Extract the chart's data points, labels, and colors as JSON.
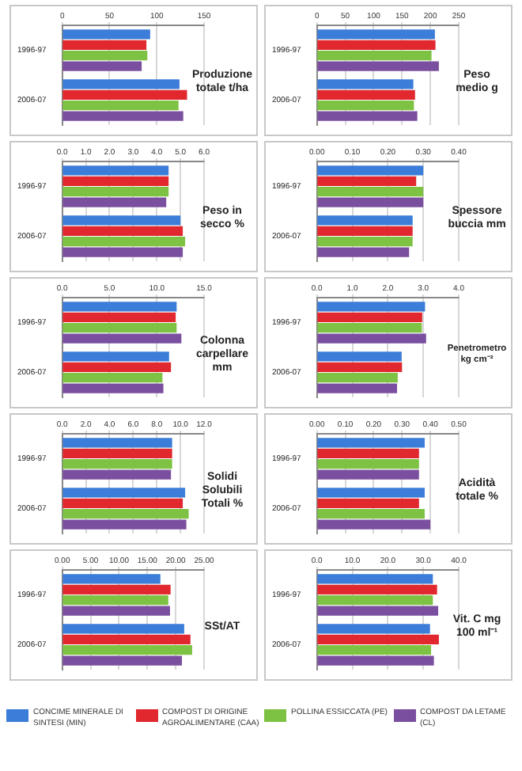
{
  "chart_data": [
    {
      "type": "bar",
      "orientation": "horizontal",
      "title": "Produzione totale t/ha",
      "categories": [
        "1996-97",
        "2006-07"
      ],
      "grid": "x",
      "legend": "bottom",
      "xlim": [
        0,
        150
      ],
      "xticks": [
        0,
        50,
        100,
        150
      ],
      "series": [
        {
          "name": "CONCIME MINERALE DI SINTESI (MIN)",
          "color": "#3b7dd8",
          "values": [
            93,
            124
          ]
        },
        {
          "name": "COMPOST DI ORIGINE AGROALIMENTARE (CAA)",
          "color": "#e0282e",
          "values": [
            89,
            132
          ]
        },
        {
          "name": "POLLINA ESSICCATA (PE)",
          "color": "#7dc242",
          "values": [
            90,
            123
          ]
        },
        {
          "name": "COMPOST DA LETAME (CL)",
          "color": "#7b4fa0",
          "values": [
            84,
            128
          ]
        }
      ]
    },
    {
      "type": "bar",
      "orientation": "horizontal",
      "title": "Peso medio g",
      "categories": [
        "1996-97",
        "2006-07"
      ],
      "grid": "x",
      "xlim": [
        0,
        250
      ],
      "xticks": [
        0,
        50,
        100,
        150,
        200,
        250
      ],
      "series": [
        {
          "color": "#3b7dd8",
          "values": [
            208,
            170
          ]
        },
        {
          "color": "#e0282e",
          "values": [
            209,
            173
          ]
        },
        {
          "color": "#7dc242",
          "values": [
            202,
            171
          ]
        },
        {
          "color": "#7b4fa0",
          "values": [
            215,
            177
          ]
        }
      ]
    },
    {
      "type": "bar",
      "orientation": "horizontal",
      "title": "Peso in secco %",
      "categories": [
        "1996-97",
        "2006-07"
      ],
      "grid": "x",
      "xlim": [
        0,
        6
      ],
      "xticks": [
        {
          "value": 0,
          "label": "0.0"
        },
        {
          "value": 1,
          "label": "1.0"
        },
        {
          "value": 2,
          "label": "2.0"
        },
        {
          "value": 3,
          "label": "3.0"
        },
        {
          "value": 4,
          "label": "4.0"
        },
        {
          "value": 5,
          "label": "5.0"
        },
        {
          "value": 6,
          "label": "6.0"
        }
      ],
      "series": [
        {
          "color": "#3b7dd8",
          "values": [
            4.5,
            5.0
          ]
        },
        {
          "color": "#e0282e",
          "values": [
            4.5,
            5.1
          ]
        },
        {
          "color": "#7dc242",
          "values": [
            4.5,
            5.2
          ]
        },
        {
          "color": "#7b4fa0",
          "values": [
            4.4,
            5.1
          ]
        }
      ]
    },
    {
      "type": "bar",
      "orientation": "horizontal",
      "title": "Spessore buccia mm",
      "categories": [
        "1996-97",
        "2006-07"
      ],
      "grid": "x",
      "xlim": [
        0,
        0.4
      ],
      "xticks": [
        {
          "value": 0,
          "label": "0.00"
        },
        {
          "value": 0.1,
          "label": "0.10"
        },
        {
          "value": 0.2,
          "label": "0.20"
        },
        {
          "value": 0.3,
          "label": "0.30"
        },
        {
          "value": 0.4,
          "label": "0.40"
        }
      ],
      "series": [
        {
          "color": "#3b7dd8",
          "values": [
            0.3,
            0.27
          ]
        },
        {
          "color": "#e0282e",
          "values": [
            0.28,
            0.27
          ]
        },
        {
          "color": "#7dc242",
          "values": [
            0.3,
            0.27
          ]
        },
        {
          "color": "#7b4fa0",
          "values": [
            0.3,
            0.26
          ]
        }
      ]
    },
    {
      "type": "bar",
      "orientation": "horizontal",
      "title": "Colonna carpellare mm",
      "categories": [
        "1996-97",
        "2006-07"
      ],
      "grid": "x",
      "xlim": [
        0,
        15
      ],
      "xticks": [
        {
          "value": 0,
          "label": "0.0"
        },
        {
          "value": 5,
          "label": "5.0"
        },
        {
          "value": 10,
          "label": "10.0"
        },
        {
          "value": 15,
          "label": "15.0"
        }
      ],
      "series": [
        {
          "color": "#3b7dd8",
          "values": [
            12.1,
            11.3
          ]
        },
        {
          "color": "#e0282e",
          "values": [
            12.0,
            11.5
          ]
        },
        {
          "color": "#7dc242",
          "values": [
            12.1,
            10.6
          ]
        },
        {
          "color": "#7b4fa0",
          "values": [
            12.6,
            10.7
          ]
        }
      ]
    },
    {
      "type": "bar",
      "orientation": "horizontal",
      "title": "Penetrometro kg cm⁻²",
      "categories": [
        "1996-97",
        "2006-07"
      ],
      "grid": "x",
      "xlim": [
        0,
        4
      ],
      "xticks": [
        {
          "value": 0,
          "label": "0.0"
        },
        {
          "value": 1,
          "label": "1.0"
        },
        {
          "value": 2,
          "label": "2.0"
        },
        {
          "value": 3,
          "label": "3.0"
        },
        {
          "value": 4,
          "label": "4.0"
        }
      ],
      "series": [
        {
          "color": "#3b7dd8",
          "values": [
            3.05,
            2.39
          ]
        },
        {
          "color": "#e0282e",
          "values": [
            2.97,
            2.4
          ]
        },
        {
          "color": "#7dc242",
          "values": [
            2.96,
            2.28
          ]
        },
        {
          "color": "#7b4fa0",
          "values": [
            3.08,
            2.26
          ]
        }
      ]
    },
    {
      "type": "bar",
      "orientation": "horizontal",
      "title": "Solidi Solubili Totali %",
      "categories": [
        "1996-97",
        "2006-07"
      ],
      "grid": "x",
      "xlim": [
        0,
        12
      ],
      "xticks": [
        {
          "value": 0,
          "label": "0.0"
        },
        {
          "value": 2,
          "label": "2.0"
        },
        {
          "value": 4,
          "label": "4.0"
        },
        {
          "value": 6,
          "label": "6.0"
        },
        {
          "value": 8,
          "label": "8.0"
        },
        {
          "value": 10,
          "label": "10.0"
        },
        {
          "value": 12,
          "label": "12.0"
        }
      ],
      "series": [
        {
          "color": "#3b7dd8",
          "values": [
            9.3,
            10.4
          ]
        },
        {
          "color": "#e0282e",
          "values": [
            9.3,
            10.2
          ]
        },
        {
          "color": "#7dc242",
          "values": [
            9.3,
            10.7
          ]
        },
        {
          "color": "#7b4fa0",
          "values": [
            9.2,
            10.5
          ]
        }
      ]
    },
    {
      "type": "bar",
      "orientation": "horizontal",
      "title": "Acidità totale %",
      "categories": [
        "1996-97",
        "2006-07"
      ],
      "grid": "x",
      "xlim": [
        0,
        0.5
      ],
      "xticks": [
        {
          "value": 0,
          "label": "0.00"
        },
        {
          "value": 0.1,
          "label": "0.10"
        },
        {
          "value": 0.2,
          "label": "0.20"
        },
        {
          "value": 0.3,
          "label": "0.30"
        },
        {
          "value": 0.4,
          "label": "0.40"
        },
        {
          "value": 0.5,
          "label": "0.50"
        }
      ],
      "series": [
        {
          "color": "#3b7dd8",
          "values": [
            0.38,
            0.38
          ]
        },
        {
          "color": "#e0282e",
          "values": [
            0.36,
            0.36
          ]
        },
        {
          "color": "#7dc242",
          "values": [
            0.36,
            0.38
          ]
        },
        {
          "color": "#7b4fa0",
          "values": [
            0.36,
            0.4
          ]
        }
      ]
    },
    {
      "type": "bar",
      "orientation": "horizontal",
      "title": "SSt/AT",
      "categories": [
        "1996-97",
        "2006-07"
      ],
      "grid": "x",
      "xlim": [
        0,
        25
      ],
      "xticks": [
        {
          "value": 0,
          "label": "0.00"
        },
        {
          "value": 5,
          "label": "5.00"
        },
        {
          "value": 10,
          "label": "10.00"
        },
        {
          "value": 15,
          "label": "15.00"
        },
        {
          "value": 20,
          "label": "20.00"
        },
        {
          "value": 25,
          "label": "25.00"
        }
      ],
      "series": [
        {
          "color": "#3b7dd8",
          "values": [
            17.3,
            21.5
          ]
        },
        {
          "color": "#e0282e",
          "values": [
            19.1,
            22.6
          ]
        },
        {
          "color": "#7dc242",
          "values": [
            18.7,
            22.9
          ]
        },
        {
          "color": "#7b4fa0",
          "values": [
            19.0,
            21.1
          ]
        }
      ]
    },
    {
      "type": "bar",
      "orientation": "horizontal",
      "title": "Vit. C mg 100 ml⁻¹",
      "categories": [
        "1996-97",
        "2006-07"
      ],
      "grid": "x",
      "xlim": [
        0,
        40
      ],
      "xticks": [
        {
          "value": 0,
          "label": "0.0"
        },
        {
          "value": 10,
          "label": "10.0"
        },
        {
          "value": 20,
          "label": "20.0"
        },
        {
          "value": 30,
          "label": "30.0"
        },
        {
          "value": 40,
          "label": "40.0"
        }
      ],
      "series": [
        {
          "color": "#3b7dd8",
          "values": [
            32.7,
            31.9
          ]
        },
        {
          "color": "#e0282e",
          "values": [
            33.9,
            34.4
          ]
        },
        {
          "color": "#7dc242",
          "values": [
            32.7,
            32.2
          ]
        },
        {
          "color": "#7b4fa0",
          "values": [
            34.2,
            33.0
          ]
        }
      ]
    }
  ]
}
